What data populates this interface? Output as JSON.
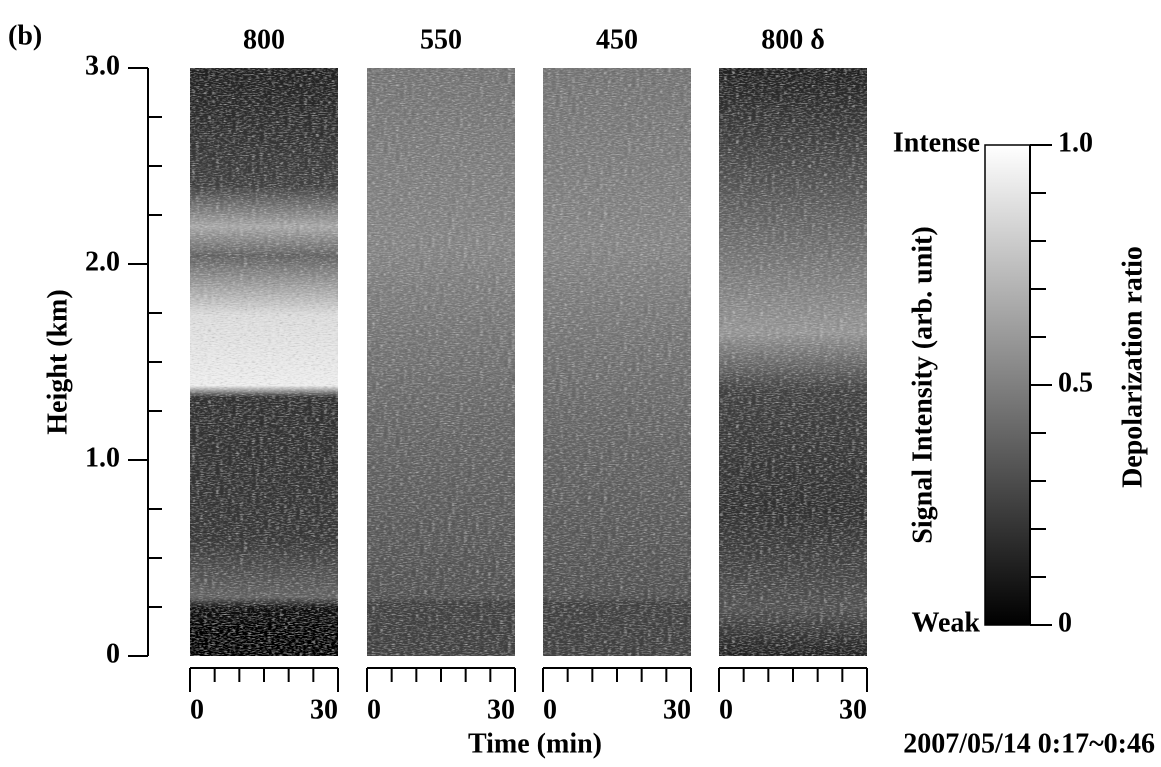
{
  "chart_data": {
    "type": "heatmap",
    "label": "(b)",
    "ylabel": "Height (km)",
    "xlabel": "Time (min)",
    "date": "2007/05/14 0:17~0:46",
    "ylim": [
      0,
      3
    ],
    "yticks": [
      0,
      {
        "value": 1,
        "label": "1.0"
      },
      {
        "value": 2,
        "label": "2.0"
      },
      {
        "value": 3,
        "label": "3.0"
      }
    ],
    "yminorticks": [
      0.25,
      0.5,
      0.75,
      1.25,
      1.5,
      1.75,
      2.25,
      2.5,
      2.75
    ],
    "xlim": [
      0,
      30
    ],
    "xticks": [
      0,
      30
    ],
    "xminorticks": [
      5,
      10,
      15,
      20,
      25
    ],
    "panels": [
      {
        "title": "800"
      },
      {
        "title": "550"
      },
      {
        "title": "450"
      },
      {
        "title": "800 δ"
      }
    ],
    "colorbar": {
      "label": "Signal Intensity (arb. unit)",
      "right_label": "Depolarization ratio",
      "top": "Intense",
      "bottom": "Weak",
      "clim": [
        0,
        1
      ],
      "ticks": [
        0,
        0.5,
        {
          "value": 1,
          "label": "1.0"
        }
      ],
      "minorticks": [
        0.1,
        0.2,
        0.3,
        0.4,
        0.6,
        0.7,
        0.8,
        0.9
      ]
    }
  }
}
